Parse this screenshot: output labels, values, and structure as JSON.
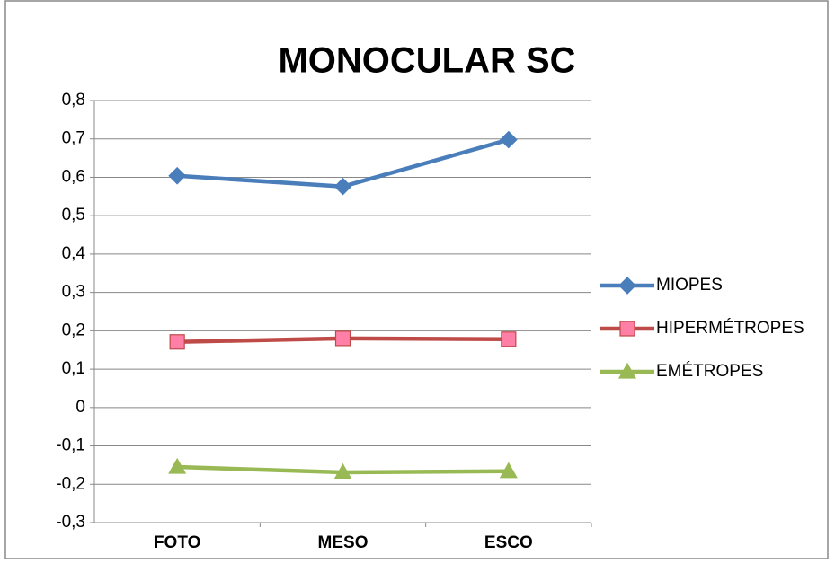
{
  "chart_data": {
    "type": "line",
    "title": "MONOCULAR SC",
    "categories": [
      "FOTO",
      "MESO",
      "ESCO"
    ],
    "series": [
      {
        "name": "MIOPES",
        "color": "#4a7ebb",
        "marker": "diamond",
        "marker_fill": "#4a7ebb",
        "values": [
          0.604,
          0.576,
          0.698
        ]
      },
      {
        "name": "HIPERMÉTROPES",
        "color": "#be4b48",
        "marker": "square",
        "marker_fill": "#ff7fa6",
        "values": [
          0.171,
          0.18,
          0.178
        ]
      },
      {
        "name": "EMÉTROPES",
        "color": "#98b954",
        "marker": "triangle",
        "marker_fill": "#98b954",
        "values": [
          -0.155,
          -0.169,
          -0.166
        ]
      }
    ],
    "ylim": [
      -0.3,
      0.8
    ],
    "yticks": [
      {
        "value": -0.3,
        "label": "-0,3"
      },
      {
        "value": -0.2,
        "label": "-0,2"
      },
      {
        "value": -0.1,
        "label": "-0,1"
      },
      0,
      {
        "value": 0.1,
        "label": "0,1"
      },
      {
        "value": 0.2,
        "label": "0,2"
      },
      {
        "value": 0.3,
        "label": "0,3"
      },
      {
        "value": 0.4,
        "label": "0,4"
      },
      {
        "value": 0.5,
        "label": "0,5"
      },
      {
        "value": 0.6,
        "label": "0,6"
      },
      {
        "value": 0.7,
        "label": "0,7"
      },
      {
        "value": 0.8,
        "label": "0,8"
      }
    ],
    "grid": true,
    "legend": "right"
  }
}
